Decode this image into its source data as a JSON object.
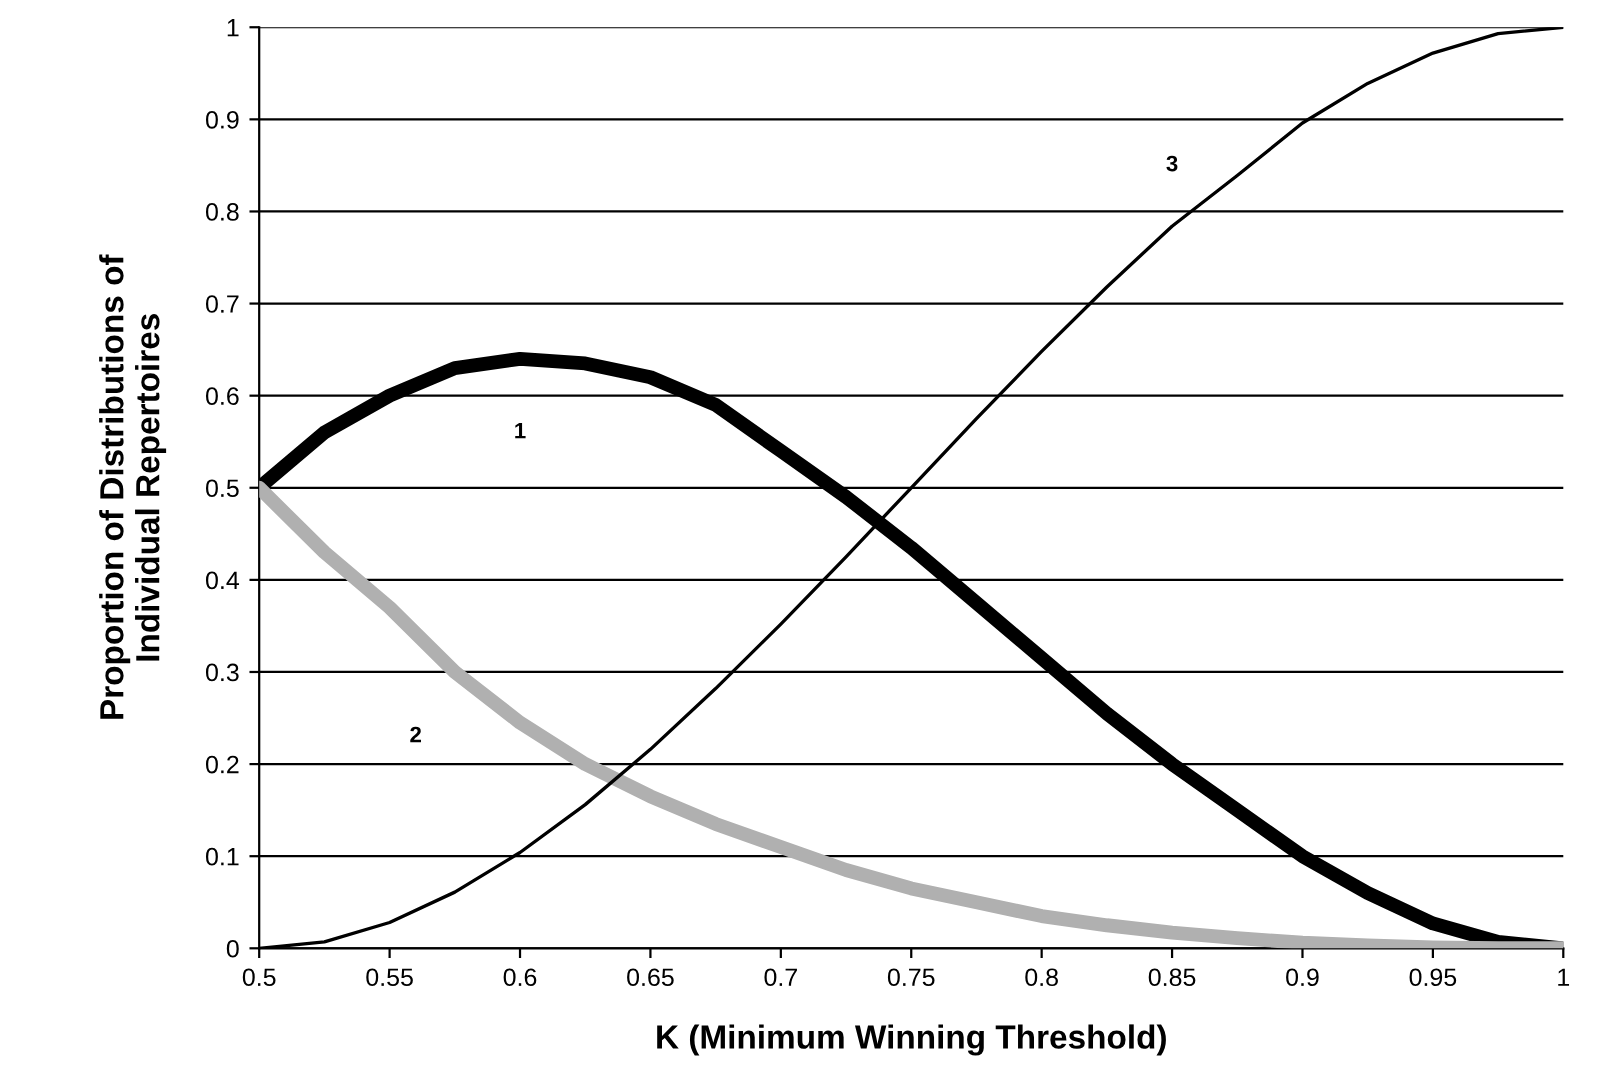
{
  "chart_data": {
    "type": "line",
    "xlabel": "K (Minimum Winning Threshold)",
    "ylabel": "Proportion of Distributions of\nIndividual Repertoires",
    "x": [
      0.5,
      0.525,
      0.55,
      0.575,
      0.6,
      0.625,
      0.65,
      0.675,
      0.7,
      0.725,
      0.75,
      0.775,
      0.8,
      0.825,
      0.85,
      0.875,
      0.9,
      0.925,
      0.95,
      0.975,
      1.0
    ],
    "series": [
      {
        "color": "#000000",
        "values": [
          0.5,
          0.56,
          0.6,
          0.63,
          0.64,
          0.635,
          0.62,
          0.59,
          0.54,
          0.49,
          0.435,
          0.375,
          0.315,
          0.255,
          0.2,
          0.15,
          0.1,
          0.06,
          0.027,
          0.007,
          0.0
        ]
      },
      {
        "color": "#b0b0b0",
        "values": [
          0.5,
          0.43,
          0.37,
          0.3,
          0.245,
          0.2,
          0.165,
          0.135,
          0.11,
          0.085,
          0.065,
          0.05,
          0.035,
          0.025,
          0.017,
          0.011,
          0.006,
          0.003,
          0.001,
          0.0,
          0.0
        ]
      },
      {
        "color": "#000000",
        "values": [
          0.0,
          0.007,
          0.028,
          0.061,
          0.104,
          0.156,
          0.216,
          0.282,
          0.352,
          0.425,
          0.5,
          0.575,
          0.648,
          0.718,
          0.784,
          0.839,
          0.896,
          0.939,
          0.972,
          0.993,
          1.0
        ]
      }
    ],
    "annotations": [
      "1",
      "2",
      "3"
    ],
    "xlim": [
      0.5,
      1.0
    ],
    "xticks": [
      0.5,
      0.55,
      0.6,
      0.65,
      0.7,
      0.75,
      0.8,
      0.85,
      0.9,
      0.95,
      1
    ],
    "ylim": [
      0,
      1
    ],
    "yticks": [
      0,
      0.1,
      0.2,
      0.3,
      0.4,
      0.5,
      0.6,
      0.7,
      0.8,
      0.9,
      1
    ],
    "grid": "y",
    "legend": false
  }
}
